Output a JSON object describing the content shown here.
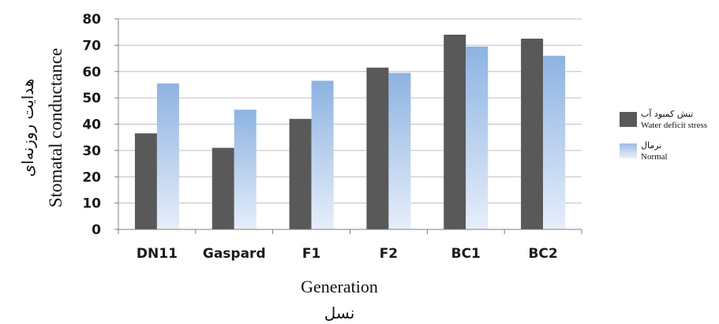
{
  "chart_data": {
    "type": "bar",
    "categories": [
      "DN11",
      "Gaspard",
      "F1",
      "F2",
      "BC1",
      "BC2"
    ],
    "series": [
      {
        "name": "Water deficit stress",
        "name_fa": "تنش کمبود آب",
        "color": "#595959",
        "values": [
          36.5,
          31,
          42,
          61.5,
          74,
          72.5
        ]
      },
      {
        "name": "Normal",
        "name_fa": "نرمال",
        "color": "#8eb4e3",
        "values": [
          55.5,
          45.5,
          56.5,
          59.5,
          69.5,
          66
        ]
      }
    ],
    "ylim": [
      0,
      80
    ],
    "yticks": [
      0,
      10,
      20,
      30,
      40,
      50,
      60,
      70,
      80
    ],
    "ylabel": "Stomatal conductance",
    "ylabel_fa": "هدایت روزنه‌ای",
    "xlabel": "Generation",
    "xlabel_fa": "نسل",
    "grid": true,
    "legend_position": "right"
  }
}
